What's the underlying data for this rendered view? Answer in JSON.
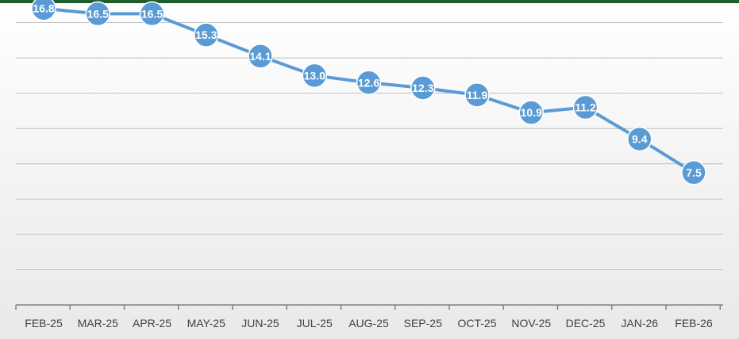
{
  "chart_data": {
    "type": "line",
    "title": "",
    "xlabel": "",
    "ylabel": "",
    "categories": [
      "FEB-25",
      "MAR-25",
      "APR-25",
      "MAY-25",
      "JUN-25",
      "JUL-25",
      "AUG-25",
      "SEP-25",
      "OCT-25",
      "NOV-25",
      "DEC-25",
      "JAN-26",
      "FEB-26"
    ],
    "series": [
      {
        "values": [
          16.8,
          16.5,
          16.5,
          15.3,
          14.1,
          13.0,
          12.6,
          12.3,
          11.9,
          10.9,
          11.2,
          9.4,
          7.5
        ],
        "labels": [
          "16.8",
          "16.5",
          "16.5",
          "15.3",
          "14.1",
          "13.0",
          "12.6",
          "12.3",
          "11.9",
          "10.9",
          "11.2",
          "9.4",
          "7.5"
        ],
        "color": "#5b9bd5"
      }
    ],
    "ylim": [
      0,
      18
    ],
    "grid": true,
    "y_tick_labels_visible": false,
    "colors": {
      "line": "#5b9bd5",
      "marker": "#5b9bd5",
      "marker_label": "#ffffff",
      "gridline": "#bfbfbf",
      "axis": "#808080",
      "tick_label": "#404040",
      "background_top": "#ffffff",
      "background_bottom": "#e9e9e9",
      "top_band": "#1f5e2c"
    }
  }
}
